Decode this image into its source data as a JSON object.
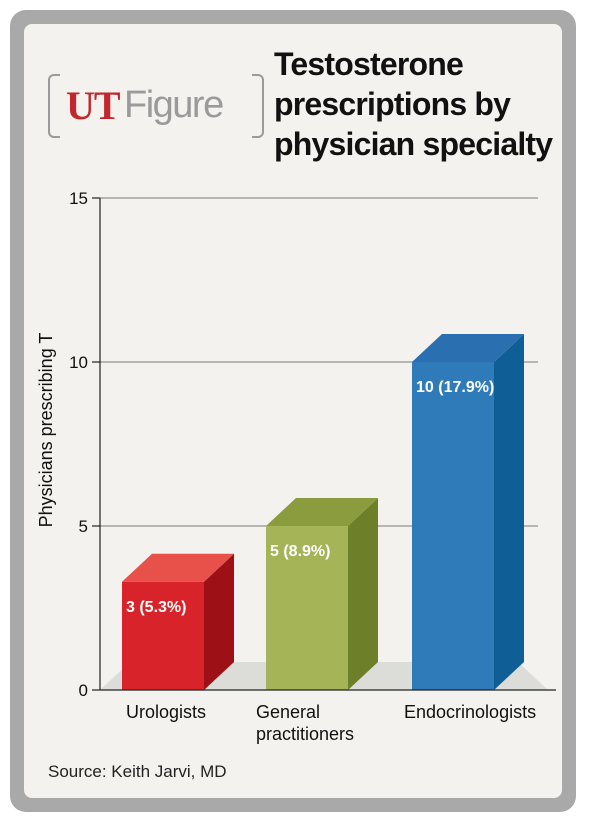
{
  "branding": {
    "ut": "UT",
    "figure": "Figure"
  },
  "source": "Source: Keith Jarvi, MD",
  "colors": {
    "urologists": "#d8232a",
    "general_practitioners": "#a4b457",
    "endocrinologists": "#2f7ab8"
  },
  "chart_data": {
    "type": "bar",
    "title_lines": [
      "Testosterone",
      "prescriptions by",
      "physician specialty"
    ],
    "ylabel": "Physicians prescribing T",
    "xlabel": "",
    "ylim": [
      0,
      15
    ],
    "yticks": [
      0,
      5,
      10,
      15
    ],
    "grid": true,
    "style": "3d",
    "categories": [
      {
        "name": "Urologists",
        "label_lines": [
          "Urologists"
        ]
      },
      {
        "name": "General practitioners",
        "label_lines": [
          "General",
          "practitioners"
        ]
      },
      {
        "name": "Endocrinologists",
        "label_lines": [
          "Endocrinologists"
        ]
      }
    ],
    "values": [
      3.3,
      5,
      10
    ],
    "data_labels": [
      "3 (5.3%)",
      "5 (8.9%)",
      "10 (17.9%)"
    ],
    "bar_colors": [
      {
        "front": "#d8232a",
        "side": "#9c1016",
        "top": "#e8504a"
      },
      {
        "front": "#a4b457",
        "side": "#6e7f2a",
        "top": "#8b9c3f"
      },
      {
        "front": "#2f7ab8",
        "side": "#0f5e96",
        "top": "#2a70b0"
      }
    ]
  }
}
